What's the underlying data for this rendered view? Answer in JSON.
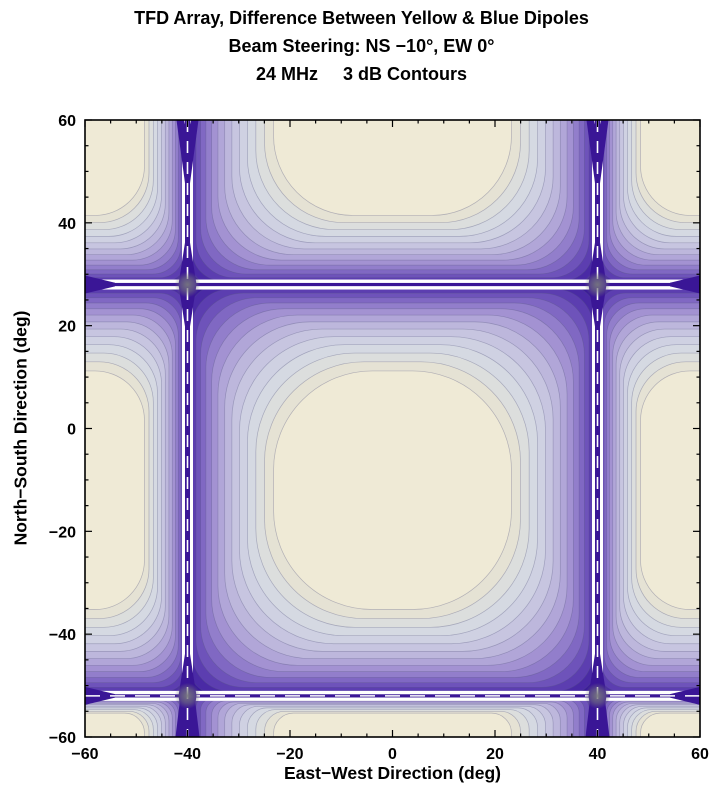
{
  "chart_data": {
    "type": "filled_contour",
    "title": "TFD Array, Difference Between Yellow & Blue Dipoles",
    "subtitle": "Beam Steering: NS −10°, EW 0°",
    "annotation": "24 MHz     3 dB Contours",
    "frequency_mhz": 24,
    "contour_step_db": 3,
    "xlabel": "East−West Direction (deg)",
    "ylabel": "North−South Direction (deg)",
    "xlim": [
      -60,
      60
    ],
    "ylim": [
      -60,
      60
    ],
    "xticks": [
      -60,
      -40,
      -20,
      0,
      20,
      40,
      60
    ],
    "yticks": [
      -60,
      -40,
      -20,
      0,
      20,
      40,
      60
    ],
    "minor_tick_step": 5,
    "null_lines_x": [
      -40,
      40
    ],
    "null_lines_y": [
      28,
      -52
    ],
    "saddle_points": [
      [
        -40,
        28
      ],
      [
        40,
        28
      ],
      [
        -40,
        -52
      ],
      [
        40,
        -52
      ]
    ],
    "band_colors_outer_to_inner": [
      "#3a1a99",
      "#4a2aa5",
      "#5c3eb0",
      "#6e53ba",
      "#8068c3",
      "#927ecb",
      "#a392d2",
      "#b1a6d8",
      "#bdb7dc",
      "#c7c5e0",
      "#cfd1e2",
      "#d5d9e2",
      "#dcdedd",
      "#e5e2d4",
      "#efead6"
    ],
    "line_color": "#3a1696",
    "gap_color": "#ffffff",
    "saddle_color": "#77777f",
    "frame_color": "#000000",
    "background_color": "#ffffff",
    "legend": "none",
    "grid": "off"
  }
}
